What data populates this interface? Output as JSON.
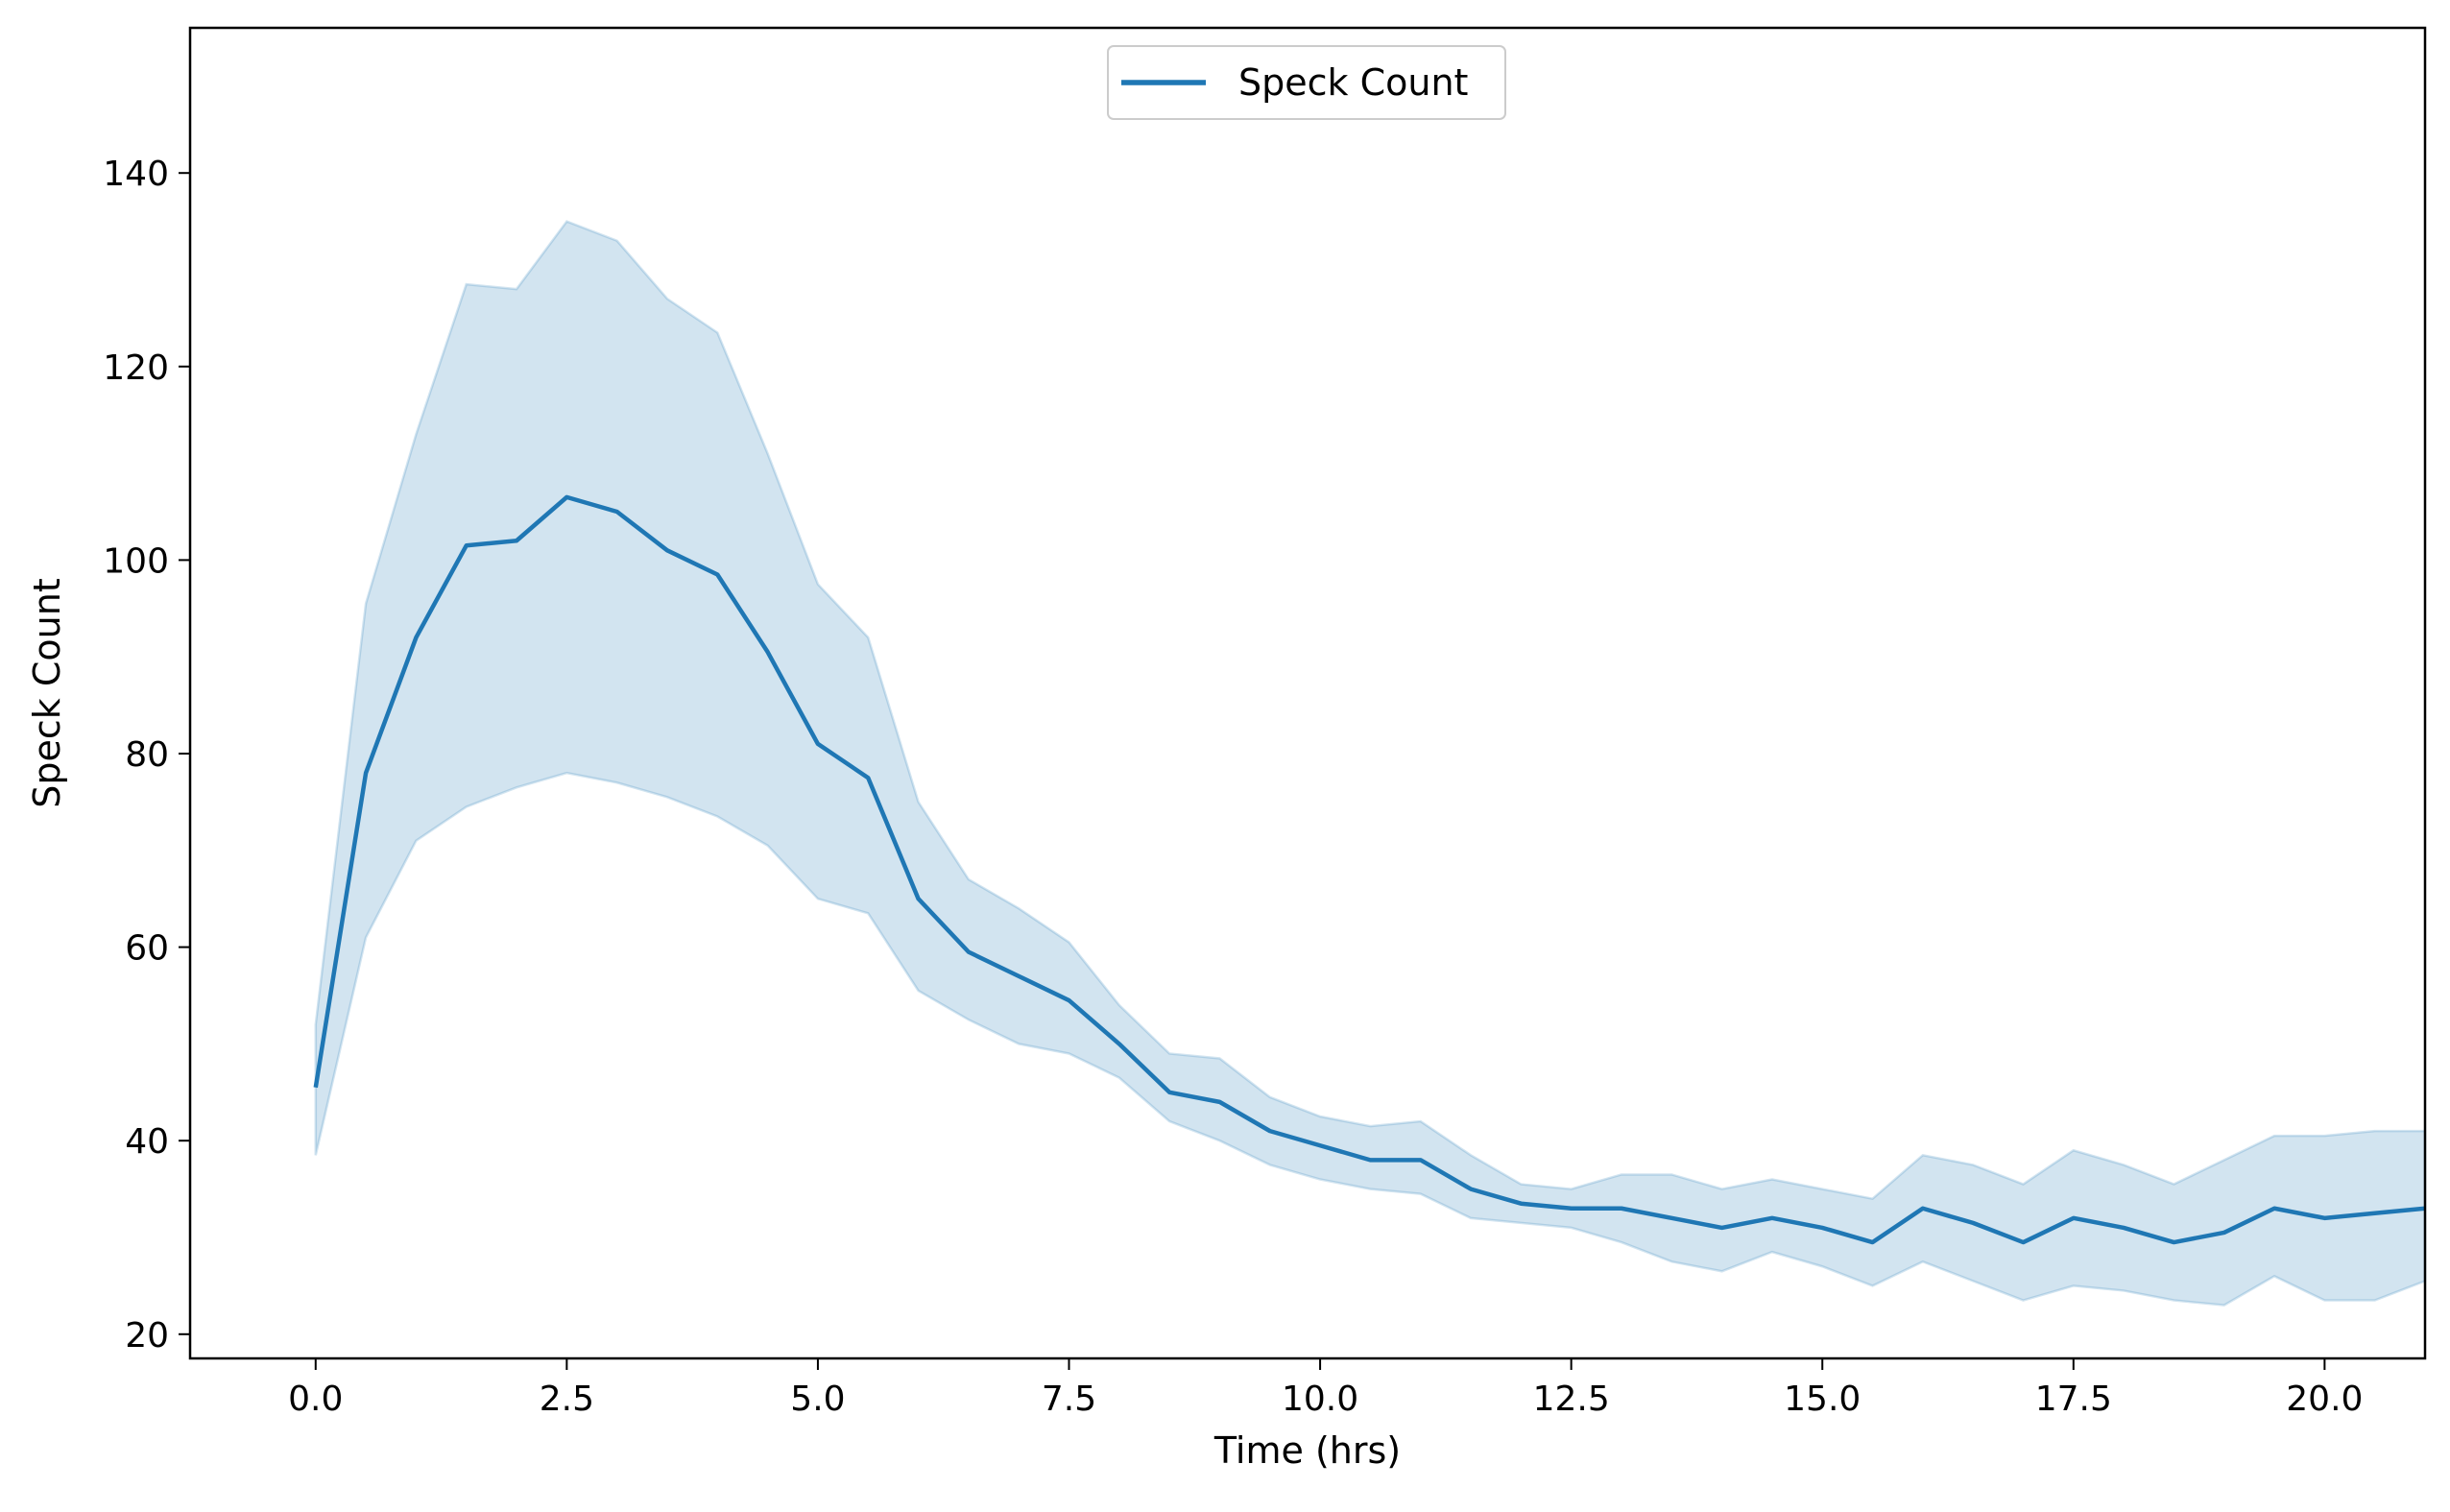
{
  "chart_data": {
    "type": "line",
    "title": "",
    "xlabel": "Time (hrs)",
    "ylabel": "Speck Count",
    "xlim": [
      -1.25,
      21.0
    ],
    "ylim": [
      17.5,
      155.0
    ],
    "xticks": [
      "0.0",
      "2.5",
      "5.0",
      "7.5",
      "10.0",
      "12.5",
      "15.0",
      "17.5",
      "20.0"
    ],
    "yticks": [
      "20",
      "40",
      "60",
      "80",
      "100",
      "120",
      "140"
    ],
    "grid": false,
    "legend": {
      "position": "top-center",
      "entries": [
        "Speck Count"
      ]
    },
    "series": [
      {
        "name": "Speck Count",
        "color": "#1f77b4",
        "band_color": "#1f77b4",
        "x": [
          0.0,
          0.5,
          1.0,
          1.5,
          2.0,
          2.5,
          3.0,
          3.5,
          4.0,
          4.5,
          5.0,
          5.5,
          6.0,
          6.5,
          7.0,
          7.5,
          8.0,
          8.5,
          9.0,
          9.5,
          10.0,
          10.5,
          11.0,
          11.5,
          12.0,
          12.5,
          13.0,
          13.5,
          14.0,
          14.5,
          15.0,
          15.5,
          16.0,
          16.5,
          17.0,
          17.5,
          18.0,
          18.5,
          19.0,
          19.5,
          20.0,
          20.5,
          21.0
        ],
        "y": [
          45.5,
          78.0,
          92.0,
          101.5,
          102.0,
          106.5,
          105.0,
          101.0,
          98.5,
          90.5,
          81.0,
          77.5,
          65.0,
          59.5,
          57.0,
          54.5,
          50.0,
          45.0,
          44.0,
          41.0,
          39.5,
          38.0,
          38.0,
          35.0,
          33.5,
          33.0,
          33.0,
          32.0,
          31.0,
          32.0,
          31.0,
          29.5,
          33.0,
          31.5,
          29.5,
          32.0,
          31.0,
          29.5,
          30.5,
          33.0,
          32.0,
          32.5,
          33.0
        ],
        "lower": [
          38.5,
          61.0,
          71.0,
          74.5,
          76.5,
          78.0,
          77.0,
          75.5,
          73.5,
          70.5,
          65.0,
          63.5,
          55.5,
          52.5,
          50.0,
          49.0,
          46.5,
          42.0,
          40.0,
          37.5,
          36.0,
          35.0,
          34.5,
          32.0,
          31.5,
          31.0,
          29.5,
          27.5,
          26.5,
          28.5,
          27.0,
          25.0,
          27.5,
          25.5,
          23.5,
          25.0,
          24.5,
          23.5,
          23.0,
          26.0,
          23.5,
          23.5,
          25.5
        ],
        "upper": [
          52.0,
          95.5,
          113.0,
          128.5,
          128.0,
          135.0,
          133.0,
          127.0,
          123.5,
          111.0,
          97.5,
          92.0,
          75.0,
          67.0,
          64.0,
          60.5,
          54.0,
          49.0,
          48.5,
          44.5,
          42.5,
          41.5,
          42.0,
          38.5,
          35.5,
          35.0,
          36.5,
          36.5,
          35.0,
          36.0,
          35.0,
          34.0,
          38.5,
          37.5,
          35.5,
          39.0,
          37.5,
          35.5,
          38.0,
          40.5,
          40.5,
          41.0,
          41.0
        ]
      }
    ]
  }
}
